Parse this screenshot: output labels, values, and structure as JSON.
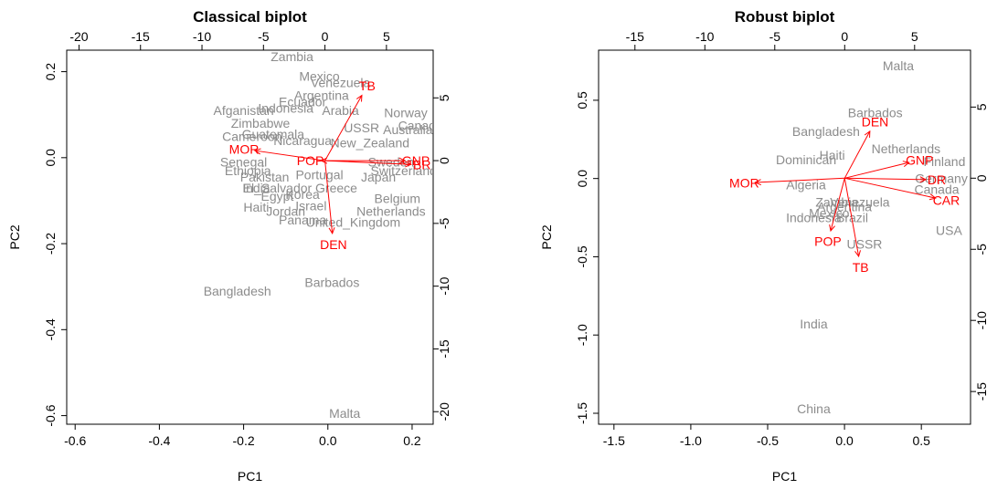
{
  "chart_data": [
    {
      "type": "scatter",
      "title": "Classical biplot",
      "xlabel": "PC1",
      "ylabel": "PC2",
      "xlim": [
        -0.62,
        0.25
      ],
      "ylim": [
        -0.62,
        0.25
      ],
      "xticks": [
        "-0.6",
        "-0.4",
        "-0.2",
        "0.0",
        "0.2"
      ],
      "yticks": [
        "-0.6",
        "-0.4",
        "-0.2",
        "0.0",
        "0.2"
      ],
      "top_ticks": [
        "-20",
        "-15",
        "-10",
        "-5",
        "0",
        "5"
      ],
      "right_ticks": [
        "-20",
        "-15",
        "-10",
        "-5",
        "0",
        "5"
      ],
      "points": [
        {
          "label": "Zambia",
          "x": -0.085,
          "y": 0.235
        },
        {
          "label": "Mexico",
          "x": -0.02,
          "y": 0.19
        },
        {
          "label": "Venezuela",
          "x": 0.03,
          "y": 0.175
        },
        {
          "label": "Argentina",
          "x": -0.015,
          "y": 0.145
        },
        {
          "label": "Afganistan",
          "x": -0.2,
          "y": 0.11
        },
        {
          "label": "Indonesia",
          "x": -0.1,
          "y": 0.115
        },
        {
          "label": "Ecuador",
          "x": -0.06,
          "y": 0.13
        },
        {
          "label": "Arabia",
          "x": 0.03,
          "y": 0.11
        },
        {
          "label": "Norway",
          "x": 0.185,
          "y": 0.105
        },
        {
          "label": "USSR",
          "x": 0.08,
          "y": 0.07
        },
        {
          "label": "Zimbabwe",
          "x": -0.16,
          "y": 0.08
        },
        {
          "label": "Canada",
          "x": 0.22,
          "y": 0.075
        },
        {
          "label": "Cameroon",
          "x": -0.18,
          "y": 0.05
        },
        {
          "label": "Guatemala",
          "x": -0.13,
          "y": 0.055
        },
        {
          "label": "Australia",
          "x": 0.19,
          "y": 0.065
        },
        {
          "label": "Nicaragua",
          "x": -0.06,
          "y": 0.04
        },
        {
          "label": "New_Zealand",
          "x": 0.1,
          "y": 0.035
        },
        {
          "label": "Senegal",
          "x": -0.2,
          "y": -0.01
        },
        {
          "label": "Ethiopia",
          "x": -0.19,
          "y": -0.03
        },
        {
          "label": "Sweden",
          "x": 0.15,
          "y": -0.01
        },
        {
          "label": "Switzerland",
          "x": 0.18,
          "y": -0.03
        },
        {
          "label": "Portugal",
          "x": -0.02,
          "y": -0.04
        },
        {
          "label": "Japan",
          "x": 0.12,
          "y": -0.045
        },
        {
          "label": "Pakistan",
          "x": -0.15,
          "y": -0.045
        },
        {
          "label": "India",
          "x": -0.17,
          "y": -0.07
        },
        {
          "label": "El_Salvador",
          "x": -0.12,
          "y": -0.07
        },
        {
          "label": "Greece",
          "x": 0.02,
          "y": -0.07
        },
        {
          "label": "Egypt",
          "x": -0.12,
          "y": -0.09
        },
        {
          "label": "Korea",
          "x": -0.06,
          "y": -0.085
        },
        {
          "label": "Haiti",
          "x": -0.17,
          "y": -0.115
        },
        {
          "label": "Israel",
          "x": -0.04,
          "y": -0.112
        },
        {
          "label": "Jordan",
          "x": -0.1,
          "y": -0.125
        },
        {
          "label": "Belgium",
          "x": 0.165,
          "y": -0.095
        },
        {
          "label": "Netherlands",
          "x": 0.15,
          "y": -0.125
        },
        {
          "label": "Panama",
          "x": -0.06,
          "y": -0.145
        },
        {
          "label": "United_Kingdom",
          "x": 0.06,
          "y": -0.15
        },
        {
          "label": "Barbados",
          "x": 0.01,
          "y": -0.29
        },
        {
          "label": "Bangladesh",
          "x": -0.215,
          "y": -0.31
        },
        {
          "label": "Malta",
          "x": 0.04,
          "y": -0.595
        }
      ],
      "arrows": [
        {
          "label": "TB",
          "x": 3.0,
          "y": 5.2
        },
        {
          "label": "MOR",
          "x": -5.7,
          "y": 0.8
        },
        {
          "label": "POP",
          "x": -0.3,
          "y": 0.0
        },
        {
          "label": "DEN",
          "x": 0.6,
          "y": -5.8
        },
        {
          "label": "GNP",
          "x": 6.5,
          "y": 0.0
        },
        {
          "label": "BR",
          "x": 7.0,
          "y": -0.3
        }
      ]
    },
    {
      "type": "scatter",
      "title": "Robust biplot",
      "xlabel": "PC1",
      "ylabel": "PC2",
      "xlim": [
        -1.6,
        0.82
      ],
      "ylim": [
        -1.57,
        0.82
      ],
      "xticks": [
        "-1.5",
        "-1.0",
        "-0.5",
        "0.0",
        "0.5"
      ],
      "yticks": [
        "-1.5",
        "-1.0",
        "-0.5",
        "0.0",
        "0.5"
      ],
      "top_ticks": [
        "-15",
        "-10",
        "-5",
        "0",
        "5"
      ],
      "right_ticks": [
        "-15",
        "-10",
        "-5",
        "0",
        "5"
      ],
      "points": [
        {
          "label": "Malta",
          "x": 0.35,
          "y": 0.72
        },
        {
          "label": "Barbados",
          "x": 0.2,
          "y": 0.42
        },
        {
          "label": "Bangladesh",
          "x": -0.12,
          "y": 0.3
        },
        {
          "label": "Netherlands",
          "x": 0.4,
          "y": 0.19
        },
        {
          "label": "Haiti",
          "x": -0.08,
          "y": 0.15
        },
        {
          "label": "Dominican",
          "x": -0.25,
          "y": 0.12
        },
        {
          "label": "Finland",
          "x": 0.65,
          "y": 0.11
        },
        {
          "label": "Germany",
          "x": 0.63,
          "y": 0.0
        },
        {
          "label": "Algeria",
          "x": -0.25,
          "y": -0.04
        },
        {
          "label": "Canada",
          "x": 0.6,
          "y": -0.07
        },
        {
          "label": "Zambia",
          "x": -0.05,
          "y": -0.15
        },
        {
          "label": "Venezuela",
          "x": 0.1,
          "y": -0.15
        },
        {
          "label": "Argentina",
          "x": 0.0,
          "y": -0.18
        },
        {
          "label": "Mexico",
          "x": -0.1,
          "y": -0.22
        },
        {
          "label": "Indonesia",
          "x": -0.2,
          "y": -0.25
        },
        {
          "label": "Brazil",
          "x": 0.05,
          "y": -0.25
        },
        {
          "label": "USA",
          "x": 0.68,
          "y": -0.33
        },
        {
          "label": "USSR",
          "x": 0.13,
          "y": -0.42
        },
        {
          "label": "India",
          "x": -0.2,
          "y": -0.93
        },
        {
          "label": "China",
          "x": -0.2,
          "y": -1.47
        }
      ],
      "arrows": [
        {
          "label": "DEN",
          "x": 1.8,
          "y": 3.3
        },
        {
          "label": "GNP",
          "x": 4.6,
          "y": 1.1
        },
        {
          "label": "DR",
          "x": 5.8,
          "y": -0.1
        },
        {
          "label": "CAR",
          "x": 6.5,
          "y": -1.4
        },
        {
          "label": "MOR",
          "x": -6.4,
          "y": -0.3
        },
        {
          "label": "POP",
          "x": -1.0,
          "y": -3.7
        },
        {
          "label": "TB",
          "x": 1.0,
          "y": -5.5
        }
      ]
    }
  ]
}
